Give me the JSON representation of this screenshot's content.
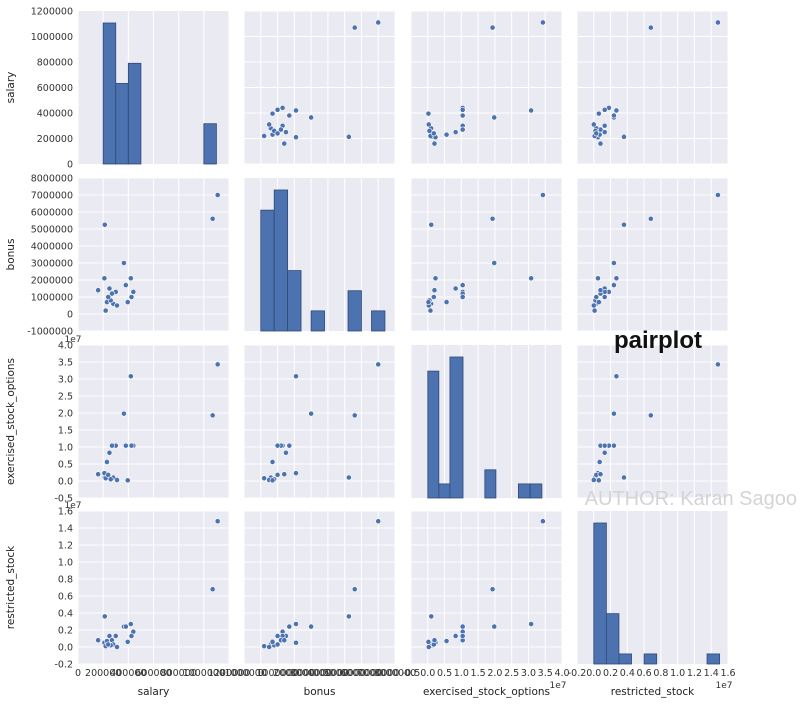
{
  "chart_data": {
    "type": "pairplot",
    "variables": [
      "salary",
      "bonus",
      "exercised_stock_options",
      "restricted_stock"
    ],
    "title": "pairplot",
    "watermark": "AUTHOR: Karan Sagoo",
    "colors": {
      "marker": "#4c72b0",
      "panel_bg": "#eaeaf2",
      "grid": "#ffffff"
    },
    "points": [
      {
        "salary": 1110000,
        "bonus": 7000000,
        "exercised_stock_options": 34300000,
        "restricted_stock": 14800000
      },
      {
        "salary": 1070000,
        "bonus": 5600000,
        "exercised_stock_options": 19300000,
        "restricted_stock": 6800000
      },
      {
        "salary": 213000,
        "bonus": 5250000,
        "exercised_stock_options": 1030000,
        "restricted_stock": 3600000
      },
      {
        "salary": 365000,
        "bonus": 3000000,
        "exercised_stock_options": 19800000,
        "restricted_stock": 2400000
      },
      {
        "salary": 420000,
        "bonus": 2100000,
        "exercised_stock_options": 30800000,
        "restricted_stock": 2700000
      },
      {
        "salary": 380000,
        "bonus": 1700000,
        "exercised_stock_options": 10400000,
        "restricted_stock": 2400000
      },
      {
        "salary": 440000,
        "bonus": 1300000,
        "exercised_stock_options": 10400000,
        "restricted_stock": 1800000
      },
      {
        "salary": 250000,
        "bonus": 1500000,
        "exercised_stock_options": 8300000,
        "restricted_stock": 1300000
      },
      {
        "salary": 300000,
        "bonus": 1300000,
        "exercised_stock_options": 10400000,
        "restricted_stock": 1300000
      },
      {
        "salary": 210000,
        "bonus": 2100000,
        "exercised_stock_options": 2300000,
        "restricted_stock": 500000
      },
      {
        "salary": 270000,
        "bonus": 1200000,
        "exercised_stock_options": 10400000,
        "restricted_stock": 800000
      },
      {
        "salary": 230000,
        "bonus": 700000,
        "exercised_stock_options": 5600000,
        "restricted_stock": 700000
      },
      {
        "salary": 280000,
        "bonus": 600000,
        "exercised_stock_options": 1000000,
        "restricted_stock": 300000
      },
      {
        "salary": 220000,
        "bonus": 200000,
        "exercised_stock_options": 800000,
        "restricted_stock": 100000
      },
      {
        "salary": 260000,
        "bonus": 800000,
        "exercised_stock_options": 500000,
        "restricted_stock": 200000
      },
      {
        "salary": 240000,
        "bonus": 1000000,
        "exercised_stock_options": 1800000,
        "restricted_stock": 300000
      },
      {
        "salary": 310000,
        "bonus": 500000,
        "exercised_stock_options": 300000,
        "restricted_stock": 0
      },
      {
        "salary": 160000,
        "bonus": 1400000,
        "exercised_stock_options": 2000000,
        "restricted_stock": 800000
      },
      {
        "salary": 425000,
        "bonus": 1000000,
        "exercised_stock_options": 10400000,
        "restricted_stock": 1300000
      },
      {
        "salary": 395000,
        "bonus": 700000,
        "exercised_stock_options": 200000,
        "restricted_stock": 600000
      }
    ],
    "axes": {
      "salary": {
        "range": [
          0,
          1200000
        ],
        "ticks": [
          0,
          200000,
          400000,
          600000,
          800000,
          1000000,
          1200000
        ],
        "tick_labels": [
          "0",
          "200000",
          "400000",
          "600000",
          "800000",
          "1000000",
          "1200000"
        ],
        "offset_label": ""
      },
      "bonus": {
        "range": [
          -1000000,
          8000000
        ],
        "ticks": [
          -1000000,
          0,
          1000000,
          2000000,
          3000000,
          4000000,
          5000000,
          6000000,
          7000000,
          8000000
        ],
        "tick_labels": [
          "-1000000",
          "0",
          "1000000",
          "2000000",
          "3000000",
          "4000000",
          "5000000",
          "6000000",
          "7000000",
          "8000000"
        ],
        "offset_label": ""
      },
      "exercised_stock_options": {
        "range": [
          -5000000,
          40000000
        ],
        "ticks": [
          -5000000,
          0,
          5000000,
          10000000,
          15000000,
          20000000,
          25000000,
          30000000,
          35000000,
          40000000
        ],
        "tick_labels": [
          "-0.5",
          "0.0",
          "0.5",
          "1.0",
          "1.5",
          "2.0",
          "2.5",
          "3.0",
          "3.5",
          "4.0"
        ],
        "offset_label": "1e7"
      },
      "restricted_stock": {
        "range": [
          -2000000,
          16000000
        ],
        "ticks": [
          -2000000,
          0,
          2000000,
          4000000,
          6000000,
          8000000,
          10000000,
          12000000,
          14000000,
          16000000
        ],
        "tick_labels": [
          "-0.2",
          "0.0",
          "0.2",
          "0.4",
          "0.6",
          "0.8",
          "1.0",
          "1.2",
          "1.4",
          "1.6"
        ],
        "offset_label": "1e7"
      }
    },
    "histograms": {
      "salary": {
        "bins": [
          {
            "start": 200000,
            "end": 300000,
            "count": 7
          },
          {
            "start": 300000,
            "end": 400000,
            "count": 4
          },
          {
            "start": 400000,
            "end": 500000,
            "count": 5
          },
          {
            "start": 500000,
            "end": 1000000,
            "count": 0
          },
          {
            "start": 1000000,
            "end": 1100000,
            "count": 2
          }
        ]
      },
      "bonus": {
        "bins": [
          {
            "start": 0,
            "end": 800000,
            "count": 6
          },
          {
            "start": 800000,
            "end": 1600000,
            "count": 7
          },
          {
            "start": 1600000,
            "end": 2400000,
            "count": 3
          },
          {
            "start": 3000000,
            "end": 3800000,
            "count": 1
          },
          {
            "start": 5200000,
            "end": 6000000,
            "count": 2
          },
          {
            "start": 6600000,
            "end": 7400000,
            "count": 1
          }
        ]
      },
      "exercised_stock_options": {
        "bins": [
          {
            "start": 0,
            "end": 3300000,
            "count": 9
          },
          {
            "start": 3300000,
            "end": 6600000,
            "count": 1
          },
          {
            "start": 6600000,
            "end": 10500000,
            "count": 10
          },
          {
            "start": 17000000,
            "end": 20300000,
            "count": 2
          },
          {
            "start": 27000000,
            "end": 30500000,
            "count": 1
          },
          {
            "start": 30500000,
            "end": 34000000,
            "count": 1
          }
        ]
      },
      "restricted_stock": {
        "bins": [
          {
            "start": 0,
            "end": 1500000,
            "count": 14
          },
          {
            "start": 1500000,
            "end": 3000000,
            "count": 5
          },
          {
            "start": 3000000,
            "end": 4500000,
            "count": 1
          },
          {
            "start": 6000000,
            "end": 7500000,
            "count": 1
          },
          {
            "start": 13500000,
            "end": 15000000,
            "count": 1
          }
        ]
      }
    }
  }
}
